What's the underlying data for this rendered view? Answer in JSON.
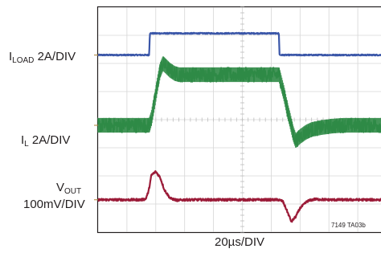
{
  "chart_data": {
    "type": "line",
    "x_unit": "µs",
    "xlim": [
      0,
      200
    ],
    "series": [
      {
        "name_main": "I",
        "name_sub": "LOAD",
        "scale": "2A/DIV",
        "color": "#3a56a8",
        "div_center": 6.3,
        "noise": 0.02,
        "x": [
          0,
          35.4,
          35.9,
          125.3,
          125.8,
          200
        ],
        "y": [
          0,
          0,
          0.77,
          0.77,
          0,
          0
        ]
      },
      {
        "name_main": "I",
        "name_sub": "L",
        "scale": "2A/DIV",
        "color": "#2f8a46",
        "div_center": 3.8,
        "noise": 0.26,
        "x": [
          0,
          35.5,
          37,
          39,
          41,
          43,
          45,
          47,
          50,
          53,
          56,
          60,
          125.5,
          127,
          129,
          131,
          133,
          135,
          137,
          140,
          144,
          148,
          155,
          162,
          170,
          200
        ],
        "y": [
          0,
          0,
          0.25,
          0.8,
          1.4,
          1.95,
          2.2,
          2.1,
          1.95,
          1.85,
          1.8,
          1.8,
          1.8,
          1.5,
          1.1,
          0.6,
          0.2,
          -0.25,
          -0.55,
          -0.4,
          -0.25,
          -0.15,
          -0.08,
          -0.03,
          0,
          0
        ]
      },
      {
        "name_main": "V",
        "name_sub": "OUT",
        "scale": "100mV/DIV",
        "color": "#9b1b38",
        "div_center": 1.15,
        "noise": 0.04,
        "x": [
          0,
          30,
          33,
          35,
          37,
          40,
          43,
          46,
          50,
          55,
          60,
          125,
          128,
          131,
          134,
          137,
          140,
          145,
          150,
          160,
          200
        ],
        "y": [
          0,
          0,
          0.03,
          0.3,
          0.88,
          1.0,
          0.8,
          0.35,
          0.05,
          -0.02,
          0,
          0,
          -0.05,
          -0.4,
          -0.78,
          -0.6,
          -0.3,
          -0.05,
          0.02,
          0,
          0
        ]
      }
    ],
    "xlabel": "20µs/DIV",
    "grid": true,
    "grid_divisions": {
      "x": 10,
      "y": 8
    },
    "figure_id": "7149 TA03b"
  }
}
